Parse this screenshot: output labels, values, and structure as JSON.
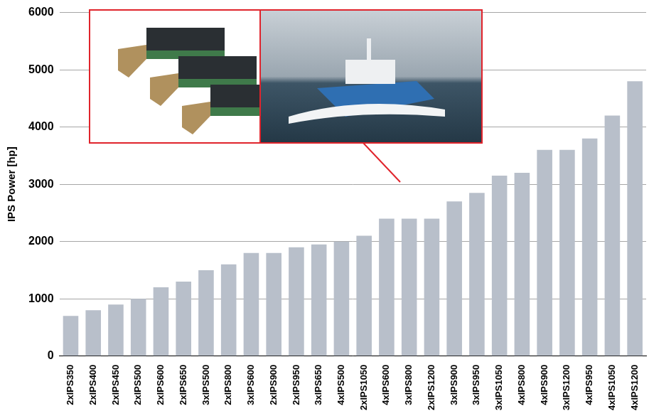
{
  "chart_data": {
    "type": "bar",
    "y_label": "IPS Power [hp]",
    "categories": [
      "2xIPS350",
      "2xIPS400",
      "2xIPS450",
      "2xIPS500",
      "2xIPS600",
      "2xIPS650",
      "3xIPS500",
      "2xIPS800",
      "3xIPS600",
      "2xIPS900",
      "2xIPS950",
      "3xIPS650",
      "4xIPS500",
      "2xIPS1050",
      "4xIPS600",
      "3xIPS800",
      "2xIPS1200",
      "3xIPS900",
      "3xIPS950",
      "3xIPS1050",
      "4xIPS800",
      "4xIPS900",
      "3xIPS1200",
      "4xIPS950",
      "4xIPS1050",
      "4xIPS1200"
    ],
    "values": [
      700,
      800,
      900,
      1000,
      1200,
      1300,
      1500,
      1600,
      1800,
      1800,
      1900,
      1950,
      2000,
      2100,
      2400,
      2400,
      2400,
      2700,
      2850,
      3150,
      3200,
      3600,
      3600,
      3800,
      4200,
      4800
    ],
    "color": "#b8bfca",
    "ylim": [
      0,
      6000
    ],
    "yticks": [
      0,
      1000,
      2000,
      3000,
      4000,
      5000,
      6000
    ],
    "grid": true
  }
}
